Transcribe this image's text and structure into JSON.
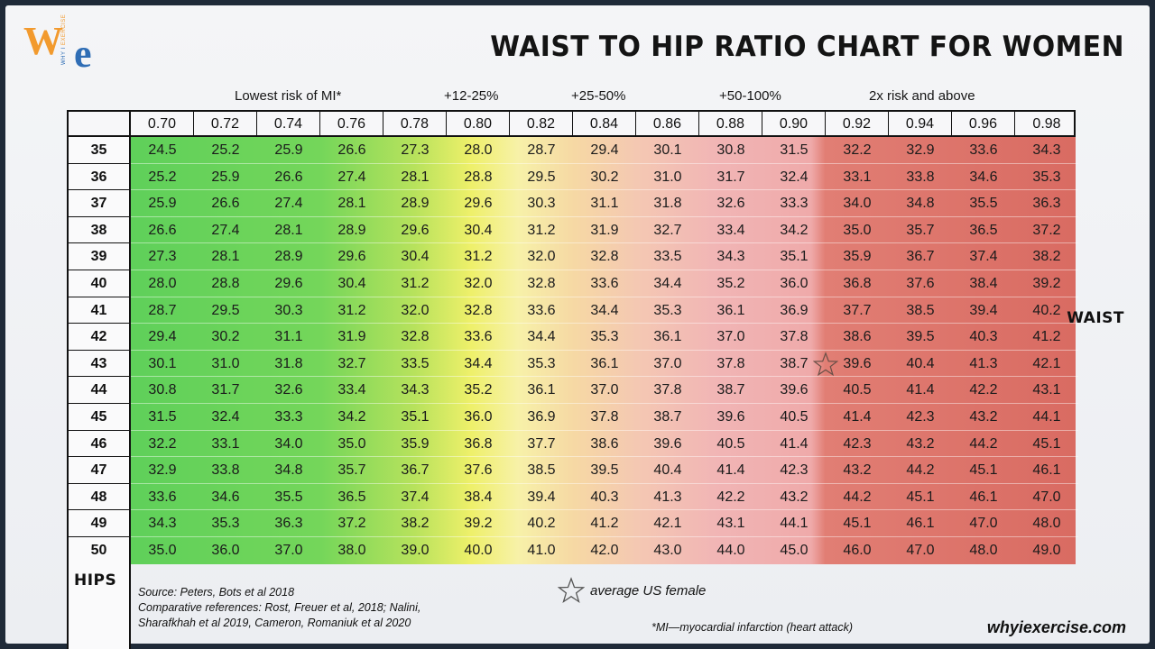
{
  "logo": {
    "w": "W",
    "e": "e",
    "tag_why": "WHY I ",
    "tag_exercise": "EXERCISE"
  },
  "title": "WAIST TO HIP RATIO CHART FOR WOMEN",
  "band_labels": [
    "Lowest risk of MI*",
    "+12-25%",
    "+25-50%",
    "+50-100%",
    "2x risk and above"
  ],
  "axis_labels": {
    "waist": "WAIST",
    "hips": "HIPS"
  },
  "source_lines": [
    "Source:  Peters, Bots et al 2018",
    "Comparative references: Rost, Freuer et al, 2018; Nalini,",
    "Sharafkhah et al 2019, Cameron, Romaniuk et al 2020"
  ],
  "legend": {
    "star_label": "average US female",
    "icon": "star-outline-icon"
  },
  "footnote": "*MI—myocardial infarction (heart attack)",
  "site": "whyiexercise.com",
  "colors": {
    "green": "#5fd05a",
    "yellow": "#eef06a",
    "pink": "#efaaaa",
    "red": "#d96b62",
    "logo_orange": "#f29a2e",
    "logo_blue": "#2f6db5"
  },
  "chart_data": {
    "type": "table",
    "title": "WAIST TO HIP RATIO CHART FOR WOMEN",
    "column_header_label": "",
    "ratios": [
      "0.70",
      "0.72",
      "0.74",
      "0.76",
      "0.78",
      "0.80",
      "0.82",
      "0.84",
      "0.86",
      "0.88",
      "0.90",
      "0.92",
      "0.94",
      "0.96",
      "0.98"
    ],
    "hips": [
      "35",
      "36",
      "37",
      "38",
      "39",
      "40",
      "41",
      "42",
      "43",
      "44",
      "45",
      "46",
      "47",
      "48",
      "49",
      "50"
    ],
    "waist": [
      [
        "24.5",
        "25.2",
        "25.9",
        "26.6",
        "27.3",
        "28.0",
        "28.7",
        "29.4",
        "30.1",
        "30.8",
        "31.5",
        "32.2",
        "32.9",
        "33.6",
        "34.3"
      ],
      [
        "25.2",
        "25.9",
        "26.6",
        "27.4",
        "28.1",
        "28.8",
        "29.5",
        "30.2",
        "31.0",
        "31.7",
        "32.4",
        "33.1",
        "33.8",
        "34.6",
        "35.3"
      ],
      [
        "25.9",
        "26.6",
        "27.4",
        "28.1",
        "28.9",
        "29.6",
        "30.3",
        "31.1",
        "31.8",
        "32.6",
        "33.3",
        "34.0",
        "34.8",
        "35.5",
        "36.3"
      ],
      [
        "26.6",
        "27.4",
        "28.1",
        "28.9",
        "29.6",
        "30.4",
        "31.2",
        "31.9",
        "32.7",
        "33.4",
        "34.2",
        "35.0",
        "35.7",
        "36.5",
        "37.2"
      ],
      [
        "27.3",
        "28.1",
        "28.9",
        "29.6",
        "30.4",
        "31.2",
        "32.0",
        "32.8",
        "33.5",
        "34.3",
        "35.1",
        "35.9",
        "36.7",
        "37.4",
        "38.2"
      ],
      [
        "28.0",
        "28.8",
        "29.6",
        "30.4",
        "31.2",
        "32.0",
        "32.8",
        "33.6",
        "34.4",
        "35.2",
        "36.0",
        "36.8",
        "37.6",
        "38.4",
        "39.2"
      ],
      [
        "28.7",
        "29.5",
        "30.3",
        "31.2",
        "32.0",
        "32.8",
        "33.6",
        "34.4",
        "35.3",
        "36.1",
        "36.9",
        "37.7",
        "38.5",
        "39.4",
        "40.2"
      ],
      [
        "29.4",
        "30.2",
        "31.1",
        "31.9",
        "32.8",
        "33.6",
        "34.4",
        "35.3",
        "36.1",
        "37.0",
        "37.8",
        "38.6",
        "39.5",
        "40.3",
        "41.2"
      ],
      [
        "30.1",
        "31.0",
        "31.8",
        "32.7",
        "33.5",
        "34.4",
        "35.3",
        "36.1",
        "37.0",
        "37.8",
        "38.7",
        "39.6",
        "40.4",
        "41.3",
        "42.1"
      ],
      [
        "30.8",
        "31.7",
        "32.6",
        "33.4",
        "34.3",
        "35.2",
        "36.1",
        "37.0",
        "37.8",
        "38.7",
        "39.6",
        "40.5",
        "41.4",
        "42.2",
        "43.1"
      ],
      [
        "31.5",
        "32.4",
        "33.3",
        "34.2",
        "35.1",
        "36.0",
        "36.9",
        "37.8",
        "38.7",
        "39.6",
        "40.5",
        "41.4",
        "42.3",
        "43.2",
        "44.1"
      ],
      [
        "32.2",
        "33.1",
        "34.0",
        "35.0",
        "35.9",
        "36.8",
        "37.7",
        "38.6",
        "39.6",
        "40.5",
        "41.4",
        "42.3",
        "43.2",
        "44.2",
        "45.1"
      ],
      [
        "32.9",
        "33.8",
        "34.8",
        "35.7",
        "36.7",
        "37.6",
        "38.5",
        "39.5",
        "40.4",
        "41.4",
        "42.3",
        "43.2",
        "44.2",
        "45.1",
        "46.1"
      ],
      [
        "33.6",
        "34.6",
        "35.5",
        "36.5",
        "37.4",
        "38.4",
        "39.4",
        "40.3",
        "41.3",
        "42.2",
        "43.2",
        "44.2",
        "45.1",
        "46.1",
        "47.0"
      ],
      [
        "34.3",
        "35.3",
        "36.3",
        "37.2",
        "38.2",
        "39.2",
        "40.2",
        "41.2",
        "42.1",
        "43.1",
        "44.1",
        "45.1",
        "46.1",
        "47.0",
        "48.0"
      ],
      [
        "35.0",
        "36.0",
        "37.0",
        "38.0",
        "39.0",
        "40.0",
        "41.0",
        "42.0",
        "43.0",
        "44.0",
        "45.0",
        "46.0",
        "47.0",
        "48.0",
        "49.0"
      ]
    ],
    "average_us_female_marker": {
      "hips": "43",
      "ratio": "0.90"
    },
    "risk_bands": [
      {
        "label": "Lowest risk of MI*",
        "from_ratio": "0.70",
        "to_ratio": "0.78",
        "color": "green"
      },
      {
        "label": "+12-25%",
        "from_ratio": "0.80",
        "to_ratio": "0.80",
        "color": "yellow"
      },
      {
        "label": "+25-50%",
        "from_ratio": "0.82",
        "to_ratio": "0.86",
        "color": "peach"
      },
      {
        "label": "+50-100%",
        "from_ratio": "0.88",
        "to_ratio": "0.90",
        "color": "pink"
      },
      {
        "label": "2x risk and above",
        "from_ratio": "0.92",
        "to_ratio": "0.98",
        "color": "red"
      }
    ]
  }
}
